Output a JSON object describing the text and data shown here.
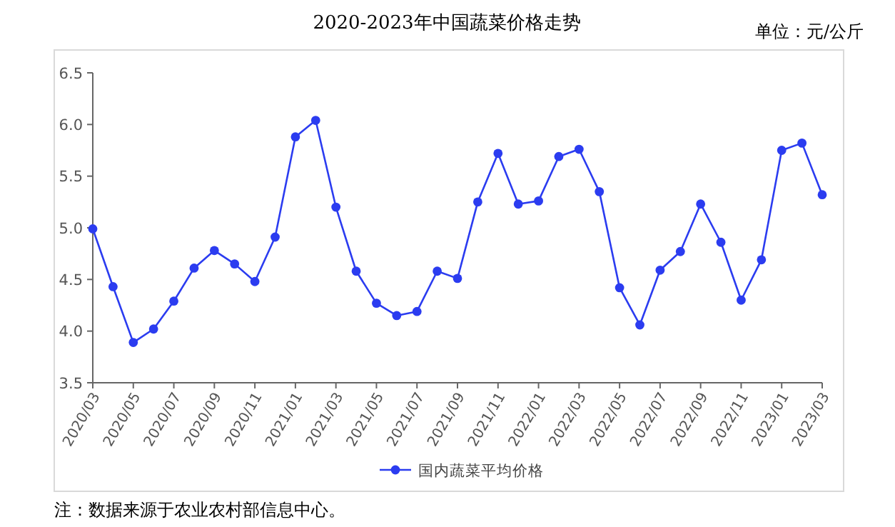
{
  "chart_data": {
    "type": "line",
    "title": "2020-2023年中国蔬菜价格走势",
    "annotations": [
      "单位：元/公斤",
      "注：数据来源于农业农村部信息中心。"
    ],
    "categories": [
      "2020/03",
      null,
      "2020/05",
      null,
      "2020/07",
      null,
      "2020/09",
      null,
      "2020/11",
      null,
      "2021/01",
      null,
      "2021/03",
      null,
      "2021/05",
      null,
      "2021/07",
      null,
      "2021/09",
      null,
      "2021/11",
      null,
      "2022/01",
      null,
      "2022/03",
      null,
      "2022/05",
      null,
      "2022/07",
      null,
      "2022/09",
      null,
      "2022/11",
      null,
      "2023/01",
      null,
      "2023/03"
    ],
    "series": [
      {
        "name": "国内蔬菜平均价格",
        "color": "#2b3cf0",
        "values": [
          4.99,
          4.43,
          3.89,
          4.02,
          4.29,
          4.61,
          4.78,
          4.65,
          4.48,
          4.91,
          5.88,
          6.04,
          5.2,
          4.58,
          4.27,
          4.15,
          4.19,
          4.58,
          4.51,
          5.25,
          5.72,
          5.23,
          5.26,
          5.69,
          5.76,
          5.35,
          4.42,
          4.06,
          4.59,
          4.77,
          5.23,
          4.86,
          4.3,
          4.69,
          5.75,
          5.82,
          5.32
        ]
      }
    ],
    "ylim": [
      3.5,
      6.5
    ],
    "yticks": [
      {
        "value": 3.5,
        "label": "3.5"
      },
      {
        "value": 4,
        "label": "4.0"
      },
      {
        "value": 4.5,
        "label": "4.5"
      },
      {
        "value": 5,
        "label": "5.0"
      },
      {
        "value": 5.5,
        "label": "5.5"
      },
      {
        "value": 6,
        "label": "6.0"
      },
      {
        "value": 6.5,
        "label": "6.5"
      }
    ],
    "grid": false,
    "legend": "bottom",
    "marker": "circle",
    "line_style": "solid"
  }
}
